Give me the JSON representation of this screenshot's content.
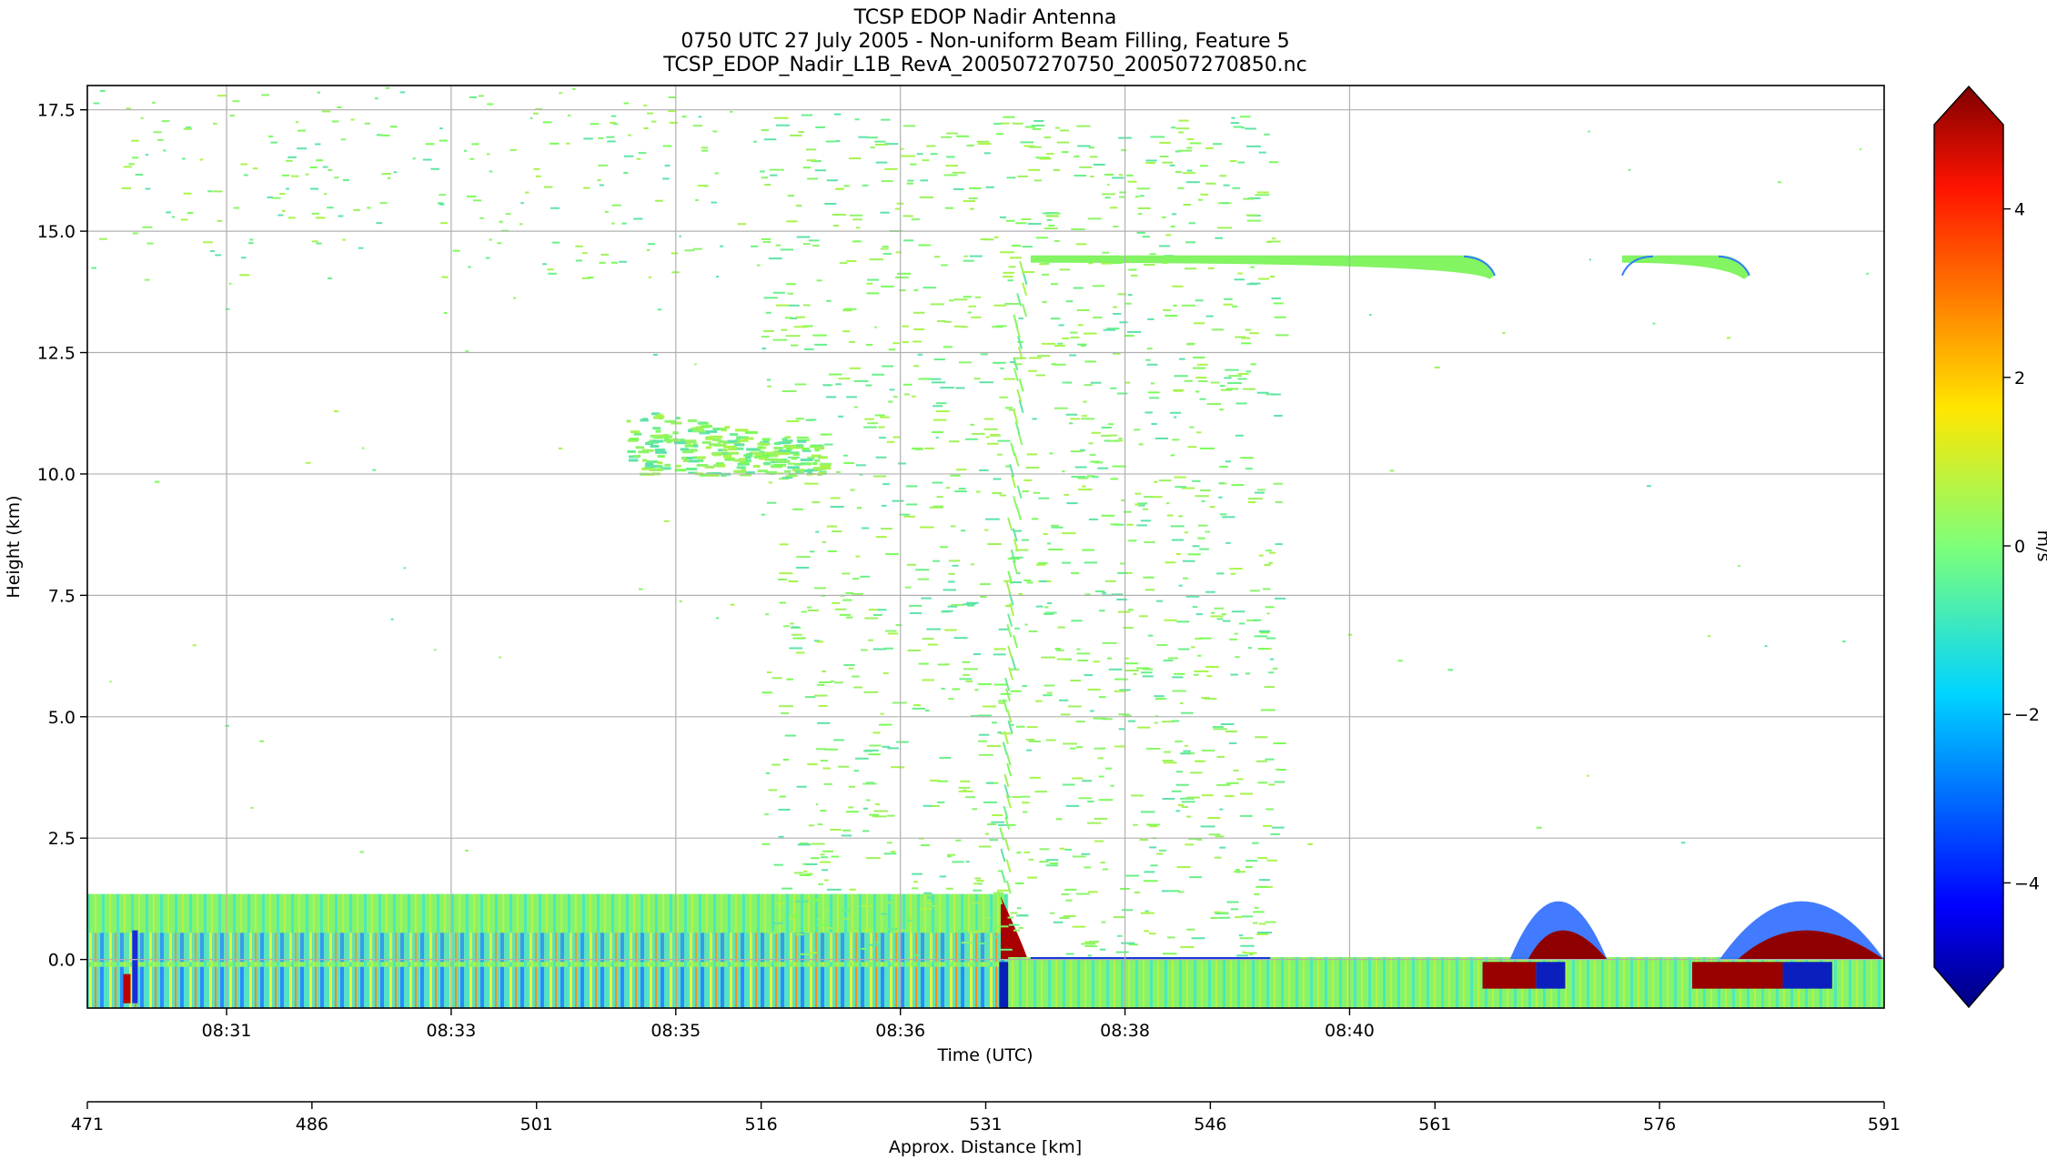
{
  "title_lines": [
    "TCSP EDOP Nadir Antenna",
    "0750 UTC 27 July 2005 - Non-uniform Beam Filling, Feature 5",
    "TCSP_EDOP_Nadir_L1B_RevA_200507270750_200507270850.nc"
  ],
  "chart_data": {
    "type": "heatmap",
    "title": "TCSP EDOP Nadir Antenna",
    "ylabel": "Height (km)",
    "xlabel": "Time (UTC)",
    "ylim": [
      -1.0,
      18.0
    ],
    "yticks": [
      "17.5",
      "15.0",
      "12.5",
      "10.0",
      "7.5",
      "5.0",
      "2.5",
      "0.0"
    ],
    "ytick_values": [
      17.5,
      15.0,
      12.5,
      10.0,
      7.5,
      5.0,
      2.5,
      0.0
    ],
    "xticks": [
      "08:31",
      "08:33",
      "08:35",
      "08:36",
      "08:38",
      "08:40"
    ],
    "xtick_distance_km": [
      480.3,
      495.3,
      510.3,
      525.3,
      540.3,
      555.3
    ],
    "secondary_xlabel": "Approx. Distance [km]",
    "secondary_xticks": [
      "471",
      "486",
      "501",
      "516",
      "531",
      "546",
      "561",
      "576",
      "591"
    ],
    "secondary_xtick_values": [
      471,
      486,
      501,
      516,
      531,
      546,
      561,
      576,
      591
    ],
    "xlim_distance_km": [
      471,
      591
    ],
    "grid": true,
    "colorbar": {
      "label": "m/s",
      "range": [
        -5,
        5
      ],
      "ticks": [
        "4",
        "2",
        "0",
        "−2",
        "−4"
      ],
      "tick_values": [
        4,
        2,
        0,
        -2,
        -4
      ],
      "extend": "both",
      "colormap": "jet"
    },
    "features": [
      {
        "name": "surface band",
        "distance_km": [
          471,
          532.5
        ],
        "height_km": [
          -1.0,
          1.35
        ]
      },
      {
        "name": "surface band",
        "distance_km": [
          532.5,
          591
        ],
        "height_km": [
          -1.0,
          0.05
        ]
      },
      {
        "name": "cloud layer",
        "distance_km": [
          534,
          565
        ],
        "height_km": [
          14.5,
          14.5
        ]
      },
      {
        "name": "cloud layer",
        "distance_km": [
          573.5,
          582
        ],
        "height_km": [
          14.2,
          14.5
        ]
      },
      {
        "name": "cloud patch",
        "distance_km": [
          507,
          520
        ],
        "height_km": [
          10.0,
          11.4
        ]
      },
      {
        "name": "noise region",
        "distance_km": [
          516,
          550.5
        ],
        "height_km": [
          0.1,
          17.5
        ]
      }
    ]
  },
  "colors": {
    "background": "#ffffff",
    "grid": "#b0b0b0",
    "dominant_velocity": "#7cfc5a"
  }
}
